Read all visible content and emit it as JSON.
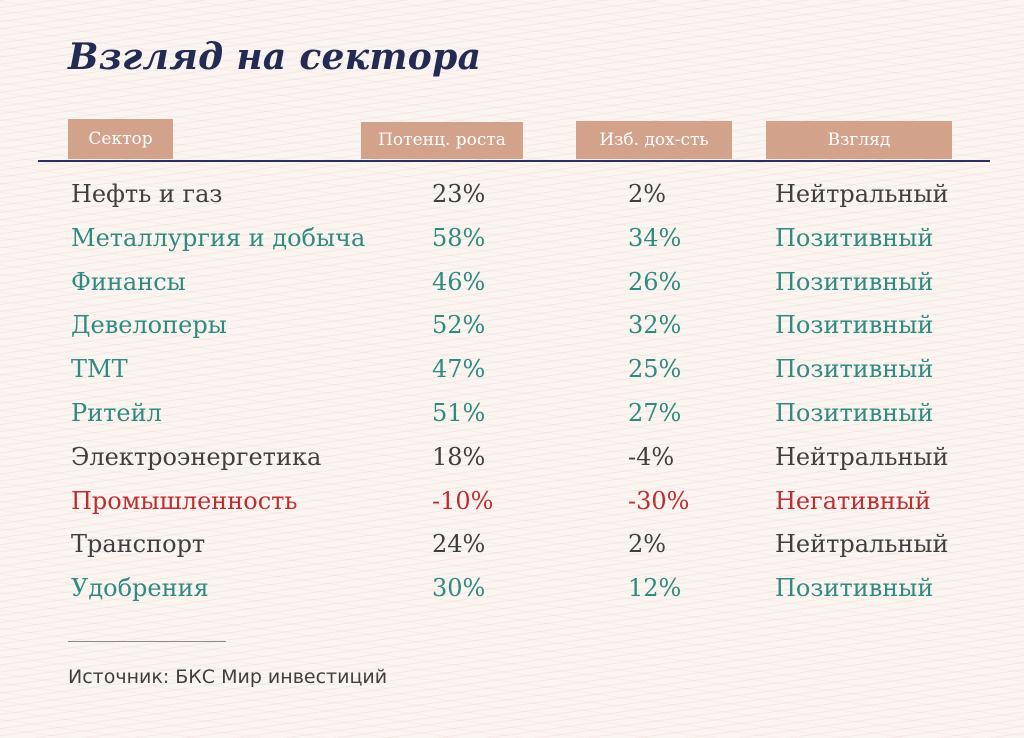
{
  "title": "Взгляд на сектора",
  "headers": {
    "sector": "Сектор",
    "potential": "Потенц. роста",
    "yield": "Изб. дох-сть",
    "view": "Взгляд"
  },
  "rows": [
    {
      "sector": "Нефть и газ",
      "potential": "23%",
      "yield": "2%",
      "view": "Нейтральный"
    },
    {
      "sector": "Металлургия и добыча",
      "potential": "58%",
      "yield": "34%",
      "view": "Позитивный"
    },
    {
      "sector": "Финансы",
      "potential": "46%",
      "yield": "26%",
      "view": "Позитивный"
    },
    {
      "sector": "Девелоперы",
      "potential": "52%",
      "yield": "32%",
      "view": "Позитивный"
    },
    {
      "sector": "ТМТ",
      "potential": "47%",
      "yield": "25%",
      "view": "Позитивный"
    },
    {
      "sector": "Ритейл",
      "potential": "51%",
      "yield": "27%",
      "view": "Позитивный"
    },
    {
      "sector": "Электроэнергетика",
      "potential": "18%",
      "yield": "-4%",
      "view": "Нейтральный"
    },
    {
      "sector": "Промышленность",
      "potential": "-10%",
      "yield": "-30%",
      "view": "Негативный"
    },
    {
      "sector": "Транспорт",
      "potential": "24%",
      "yield": "2%",
      "view": "Нейтральный"
    },
    {
      "sector": "Удобрения",
      "potential": "30%",
      "yield": "12%",
      "view": "Позитивный"
    }
  ],
  "source": "Источник: БКС Мир инвестиций",
  "colors": {
    "title": "#232a54",
    "header_bg": "#d2a28a",
    "neutral": "#3f3f3f",
    "positive": "#2f8a7f",
    "negative": "#bb2f33"
  }
}
